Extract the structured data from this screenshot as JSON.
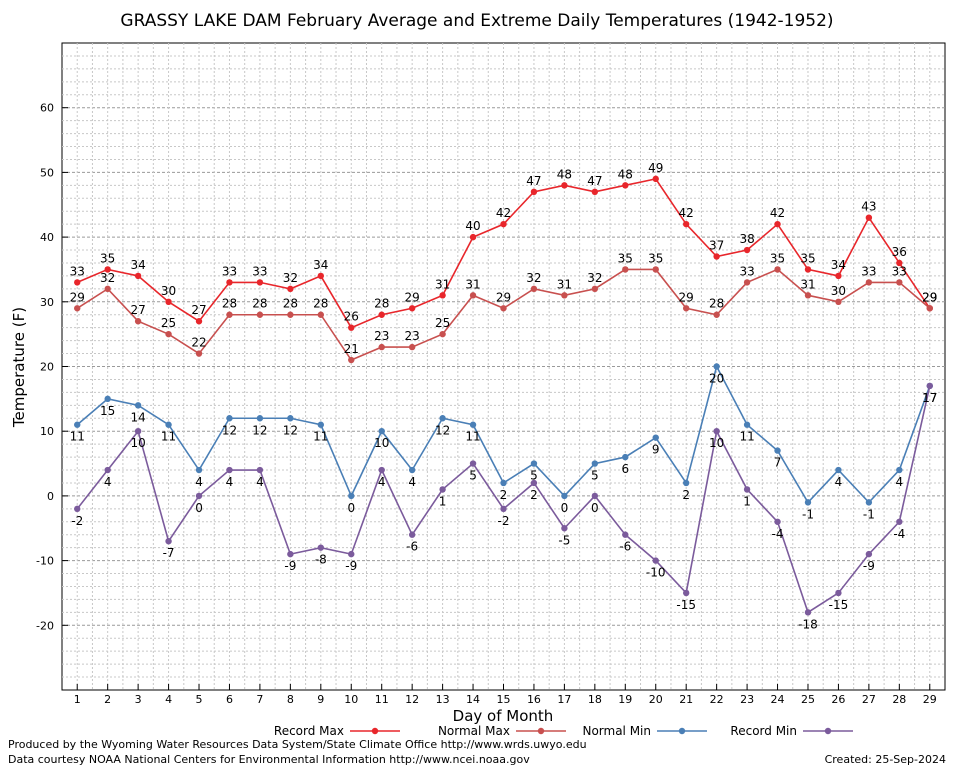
{
  "chart_data": {
    "type": "line",
    "title": "GRASSY LAKE DAM February Average and Extreme Daily Temperatures (1942-1952)",
    "xlabel": "Day of Month",
    "ylabel": "Temperature (F)",
    "x": [
      1,
      2,
      3,
      4,
      5,
      6,
      7,
      8,
      9,
      10,
      11,
      12,
      13,
      14,
      15,
      16,
      17,
      18,
      19,
      20,
      21,
      22,
      23,
      24,
      25,
      26,
      27,
      28,
      29
    ],
    "xlim": [
      0.5,
      29.5
    ],
    "ylim": [
      -30,
      70
    ],
    "yticks": [
      -20,
      -10,
      0,
      10,
      20,
      30,
      40,
      50,
      60
    ],
    "grid": true,
    "legend_position": "bottom",
    "series": [
      {
        "name": "Record Max",
        "color": "#e8262b",
        "values": [
          33,
          35,
          34,
          30,
          27,
          33,
          33,
          32,
          34,
          26,
          28,
          29,
          31,
          40,
          42,
          47,
          48,
          47,
          48,
          49,
          42,
          37,
          38,
          42,
          35,
          34,
          43,
          36,
          29
        ],
        "label_pos": "above"
      },
      {
        "name": "Normal Max",
        "color": "#c8504f",
        "values": [
          29,
          32,
          27,
          25,
          22,
          28,
          28,
          28,
          28,
          21,
          23,
          23,
          25,
          31,
          29,
          32,
          31,
          32,
          35,
          35,
          29,
          28,
          33,
          35,
          31,
          30,
          33,
          33,
          29
        ],
        "label_pos": "above"
      },
      {
        "name": "Normal Min",
        "color": "#4a7fb6",
        "values": [
          11,
          15,
          14,
          11,
          4,
          12,
          12,
          12,
          11,
          0,
          10,
          4,
          12,
          11,
          2,
          5,
          0,
          5,
          6,
          9,
          2,
          20,
          11,
          7,
          -1,
          4,
          -1,
          4,
          17
        ],
        "label_pos": "below"
      },
      {
        "name": "Record Min",
        "color": "#7b5b9c",
        "values": [
          -2,
          4,
          10,
          -7,
          0,
          4,
          4,
          -9,
          -8,
          -9,
          4,
          -6,
          1,
          5,
          -2,
          2,
          -5,
          0,
          -6,
          -10,
          -15,
          10,
          1,
          -4,
          -18,
          -15,
          -9,
          -4,
          17
        ],
        "label_pos": "below"
      }
    ]
  },
  "footer": {
    "line1": "Produced by the Wyoming Water Resources Data System/State Climate Office http://www.wrds.uwyo.edu",
    "line2": "Data courtesy NOAA National Centers for Environmental Information http://www.ncei.noaa.gov",
    "created": "Created: 25-Sep-2024"
  }
}
